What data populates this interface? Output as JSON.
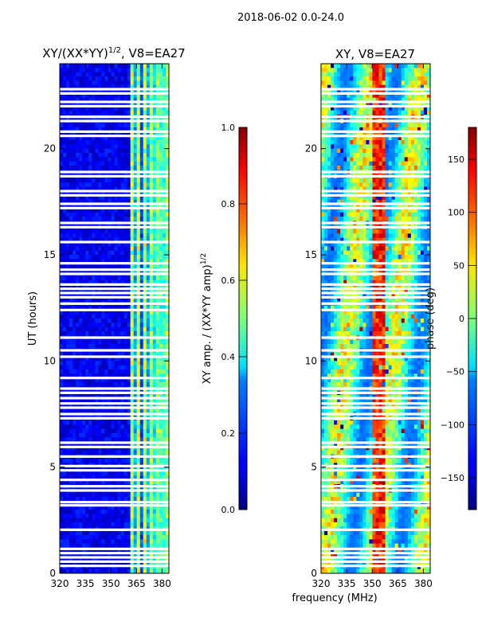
{
  "chart_data": [
    {
      "type": "heatmap",
      "suptitle": "2018-06-02 0.0-24.0",
      "title_main": "XY/(XX*YY)",
      "title_exp": "1/2",
      "title_tail": ", V8=EA27",
      "ylabel": "UT (hours)",
      "xlabel": "",
      "xlim": [
        320,
        384
      ],
      "ylim": [
        0,
        24
      ],
      "xticks": [
        320,
        335,
        350,
        365,
        380
      ],
      "yticks": [
        0,
        5,
        10,
        15,
        20
      ],
      "colormap": "jet",
      "gap_hours": [
        0.35,
        0.55,
        0.75,
        0.95,
        1.15,
        2.05,
        3.2,
        3.35,
        3.9,
        4.1,
        4.4,
        4.85,
        5.05,
        5.5,
        5.95,
        6.15,
        7.3,
        7.5,
        7.8,
        8.0,
        8.25,
        8.5,
        8.7,
        9.2,
        10.2,
        10.5,
        11.1,
        12.4,
        12.7,
        13.0,
        13.2,
        13.4,
        13.6,
        14.1,
        14.3,
        14.6,
        15.6,
        16.3,
        16.5,
        17.2,
        17.4,
        17.8,
        18.0,
        18.7,
        18.9,
        20.6,
        20.8,
        21.3,
        21.5,
        22.0,
        22.2,
        22.6,
        22.8
      ],
      "colorbar": {
        "label_main": "XY amp. / (XX*YY amp)",
        "label_exp": "1/2",
        "ticks": [
          0.0,
          0.2,
          0.4,
          0.6,
          0.8,
          1.0
        ],
        "tick_labels": [
          "0.0",
          "0.2",
          "0.4",
          "0.6",
          "0.8",
          "1.0"
        ],
        "range": [
          0.0,
          1.0
        ]
      }
    },
    {
      "type": "heatmap",
      "title": "XY, V8=EA27",
      "ylabel": "",
      "xlabel": "frequency (MHz)",
      "xlim": [
        320,
        384
      ],
      "ylim": [
        0,
        24
      ],
      "xticks": [
        320,
        335,
        350,
        365,
        380
      ],
      "yticks": [
        0,
        5,
        10,
        15,
        20
      ],
      "colormap": "jet",
      "gap_hours": [
        0.35,
        0.55,
        0.75,
        0.95,
        1.15,
        2.05,
        3.2,
        3.35,
        3.9,
        4.1,
        4.4,
        4.85,
        5.05,
        5.5,
        5.95,
        6.15,
        7.3,
        7.5,
        7.8,
        8.0,
        8.25,
        8.5,
        8.7,
        9.2,
        10.2,
        10.5,
        11.1,
        12.4,
        12.7,
        13.0,
        13.2,
        13.4,
        13.6,
        14.1,
        14.3,
        14.6,
        15.6,
        16.3,
        16.5,
        17.2,
        17.4,
        17.8,
        18.0,
        18.7,
        18.9,
        20.6,
        20.8,
        21.3,
        21.5,
        22.0,
        22.2,
        22.6,
        22.8
      ],
      "colorbar": {
        "label": "phase (deg)",
        "ticks": [
          -150,
          -100,
          -50,
          0,
          50,
          100,
          150
        ],
        "tick_labels": [
          "−150",
          "−100",
          "−50",
          "0",
          "50",
          "100",
          "150"
        ],
        "range": [
          -180,
          180
        ]
      }
    }
  ]
}
